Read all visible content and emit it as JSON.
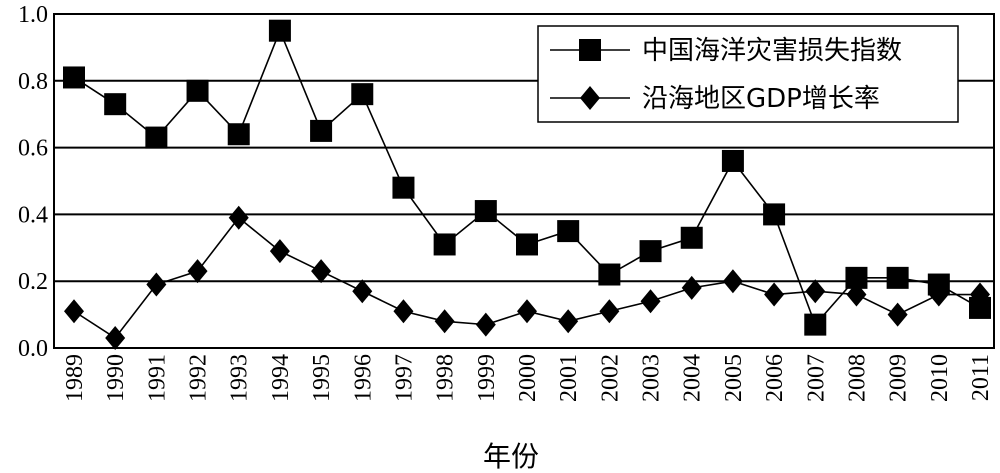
{
  "chart_data": {
    "type": "line",
    "title": "",
    "xlabel": "年份",
    "ylabel": "",
    "ylim": [
      0,
      1.0
    ],
    "yticks": [
      "0.0",
      "0.2",
      "0.4",
      "0.6",
      "0.8",
      "1.0"
    ],
    "grid": "horizontal",
    "legend_position": "top-right",
    "categories": [
      "1989",
      "1990",
      "1991",
      "1992",
      "1993",
      "1994",
      "1995",
      "1996",
      "1997",
      "1998",
      "1999",
      "2000",
      "2001",
      "2002",
      "2003",
      "2004",
      "2005",
      "2006",
      "2007",
      "2008",
      "2009",
      "2010",
      "2011"
    ],
    "series": [
      {
        "name": "中国海洋灾害损失指数",
        "marker": "square",
        "values": [
          0.81,
          0.73,
          0.63,
          0.77,
          0.64,
          0.95,
          0.65,
          0.76,
          0.48,
          0.31,
          0.41,
          0.31,
          0.35,
          0.22,
          0.29,
          0.33,
          0.56,
          0.4,
          0.07,
          0.21,
          0.21,
          0.19,
          0.12
        ]
      },
      {
        "name": "沿海地区GDP增长率",
        "marker": "diamond",
        "values": [
          0.11,
          0.03,
          0.19,
          0.23,
          0.39,
          0.29,
          0.23,
          0.17,
          0.11,
          0.08,
          0.07,
          0.11,
          0.08,
          0.11,
          0.14,
          0.18,
          0.2,
          0.16,
          0.17,
          0.16,
          0.1,
          0.16,
          0.16
        ]
      }
    ]
  }
}
